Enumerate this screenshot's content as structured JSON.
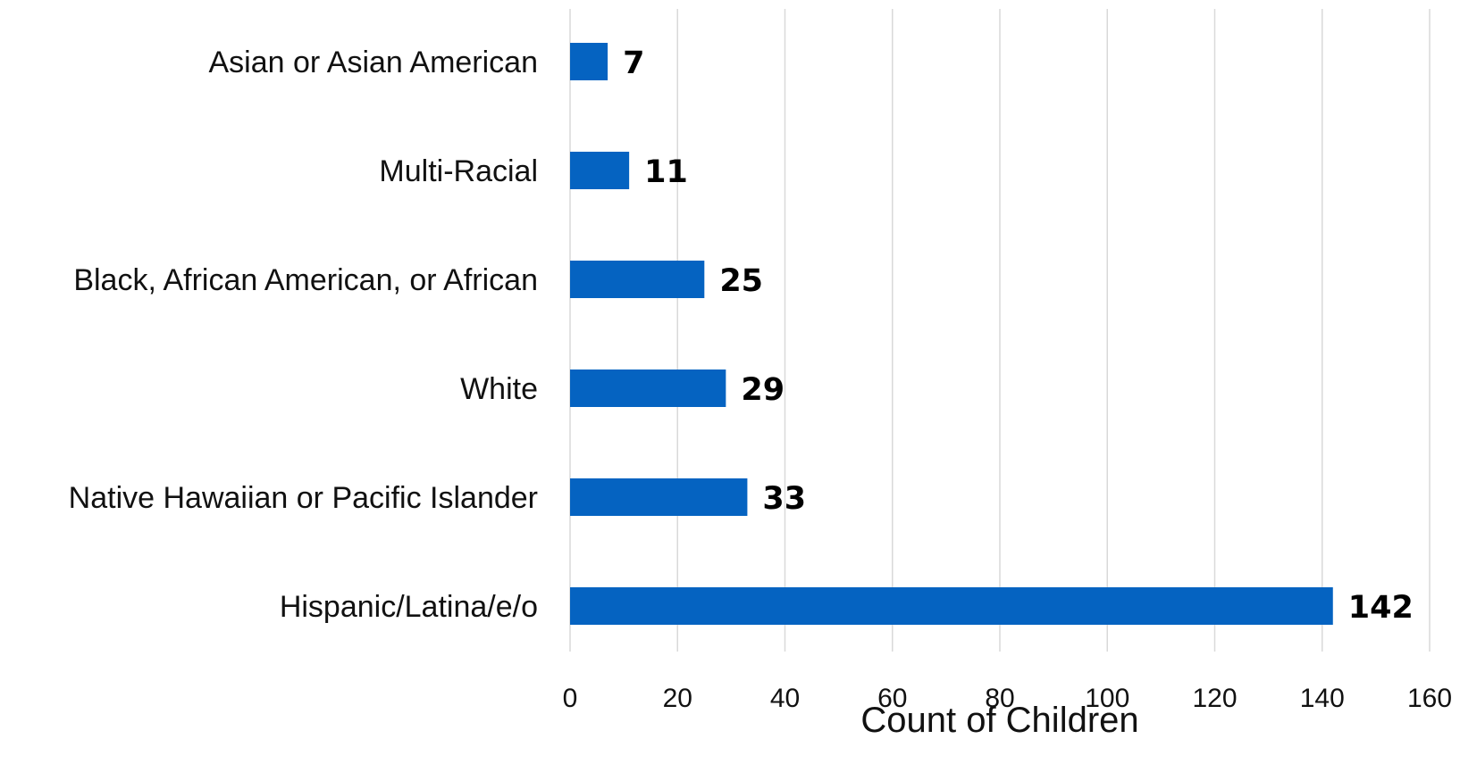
{
  "chart_data": {
    "type": "bar",
    "orientation": "horizontal",
    "title": "",
    "xlabel": "Count of Children",
    "ylabel": "",
    "categories": [
      "Asian or Asian American",
      "Multi-Racial",
      "Black, African American, or African",
      "White",
      "Native Hawaiian or Pacific Islander",
      "Hispanic/Latina/e/o"
    ],
    "values": [
      7,
      11,
      25,
      29,
      33,
      142
    ],
    "data_labels": [
      "7",
      "11",
      "25",
      "29",
      "33",
      "142"
    ],
    "xlim": [
      0,
      160
    ],
    "xticks": [
      0,
      20,
      40,
      60,
      80,
      100,
      120,
      140,
      160
    ],
    "xtick_labels": [
      "0",
      "20",
      "40",
      "60",
      "80",
      "100",
      "120",
      "140",
      "160"
    ],
    "grid": "vertical",
    "legend": "none",
    "colors": {
      "bar": "#0563C1",
      "grid": "#D9D9D9",
      "text": "#111111"
    }
  }
}
